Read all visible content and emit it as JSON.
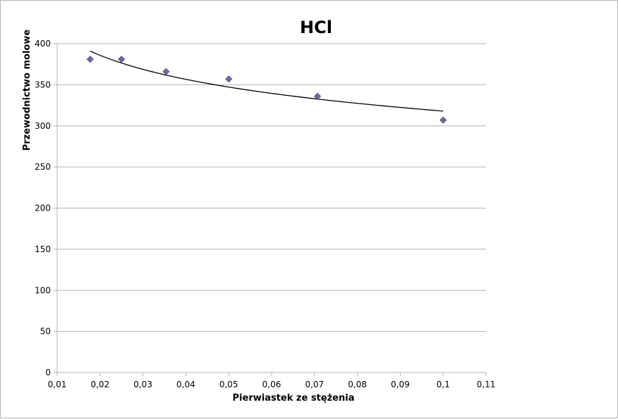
{
  "chart_data": {
    "type": "scatter",
    "title": "HCl",
    "xlabel": "Pierwiastek ze stężenia",
    "ylabel": "Przewodnictwo molowe",
    "xlim": [
      0.01,
      0.11
    ],
    "ylim": [
      0,
      400
    ],
    "x_ticks": [
      0.01,
      0.02,
      0.03,
      0.04,
      0.05,
      0.06,
      0.07,
      0.08,
      0.09,
      0.1,
      0.11
    ],
    "x_tick_labels": [
      "0,01",
      "0,02",
      "0,03",
      "0,04",
      "0,05",
      "0,06",
      "0,07",
      "0,08",
      "0,09",
      "0,1",
      "0,11"
    ],
    "y_ticks": [
      0,
      50,
      100,
      150,
      200,
      250,
      300,
      350,
      400
    ],
    "y_tick_labels": [
      "0",
      "50",
      "100",
      "150",
      "200",
      "250",
      "300",
      "350",
      "400"
    ],
    "grid": "horizontal",
    "legend": "none",
    "series": [
      {
        "marker": "diamond",
        "color": "#6b6bab",
        "x": [
          0.0177,
          0.025,
          0.0354,
          0.05,
          0.0707,
          0.1
        ],
        "y": [
          381,
          381,
          366,
          357,
          336,
          307
        ]
      }
    ],
    "trendline": {
      "type": "logarithmic",
      "color": "#000000",
      "x_range": [
        0.0177,
        0.1
      ],
      "y_at_start": 391,
      "y_at_end": 318
    }
  }
}
